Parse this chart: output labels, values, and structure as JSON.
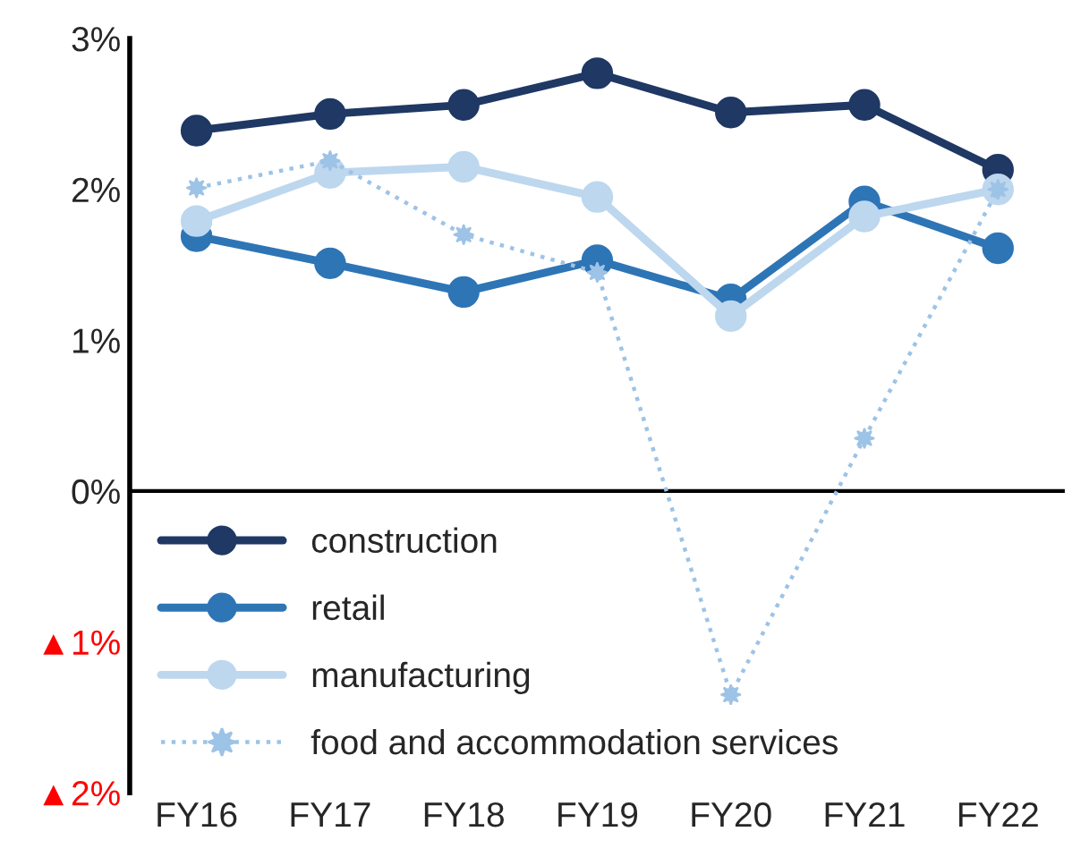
{
  "chart_data": {
    "type": "line",
    "categories": [
      "FY16",
      "FY17",
      "FY18",
      "FY19",
      "FY20",
      "FY21",
      "FY22"
    ],
    "series": [
      {
        "name": "construction",
        "color": "#1f3864",
        "values": [
          2.39,
          2.5,
          2.56,
          2.77,
          2.51,
          2.56,
          2.13
        ]
      },
      {
        "name": "retail",
        "color": "#2e75b6",
        "values": [
          1.69,
          1.51,
          1.32,
          1.53,
          1.27,
          1.92,
          1.61
        ]
      },
      {
        "name": "manufacturing",
        "color": "#bdd7ee",
        "values": [
          1.79,
          2.11,
          2.15,
          1.95,
          1.16,
          1.82,
          2.0
        ]
      },
      {
        "name": "food and accommodation services",
        "color": "#9dc3e6",
        "marker": "star",
        "line_style": "dotted",
        "values": [
          2.01,
          2.19,
          1.7,
          1.45,
          -1.35,
          0.35,
          2.0
        ]
      }
    ],
    "ylim": [
      -2,
      3
    ],
    "yticks": [
      {
        "value": -2,
        "label": "▲2%"
      },
      {
        "value": -1,
        "label": "▲1%"
      },
      {
        "value": 0,
        "label": "0%"
      },
      {
        "value": 1,
        "label": "1%"
      },
      {
        "value": 2,
        "label": "2%"
      },
      {
        "value": 3,
        "label": "3%"
      }
    ],
    "ref_lines": [
      {
        "axis": "y",
        "value": 0,
        "color": "#000000"
      }
    ],
    "marker": "circle",
    "line_style": "solid",
    "grid": false,
    "legend": "bottom left"
  }
}
